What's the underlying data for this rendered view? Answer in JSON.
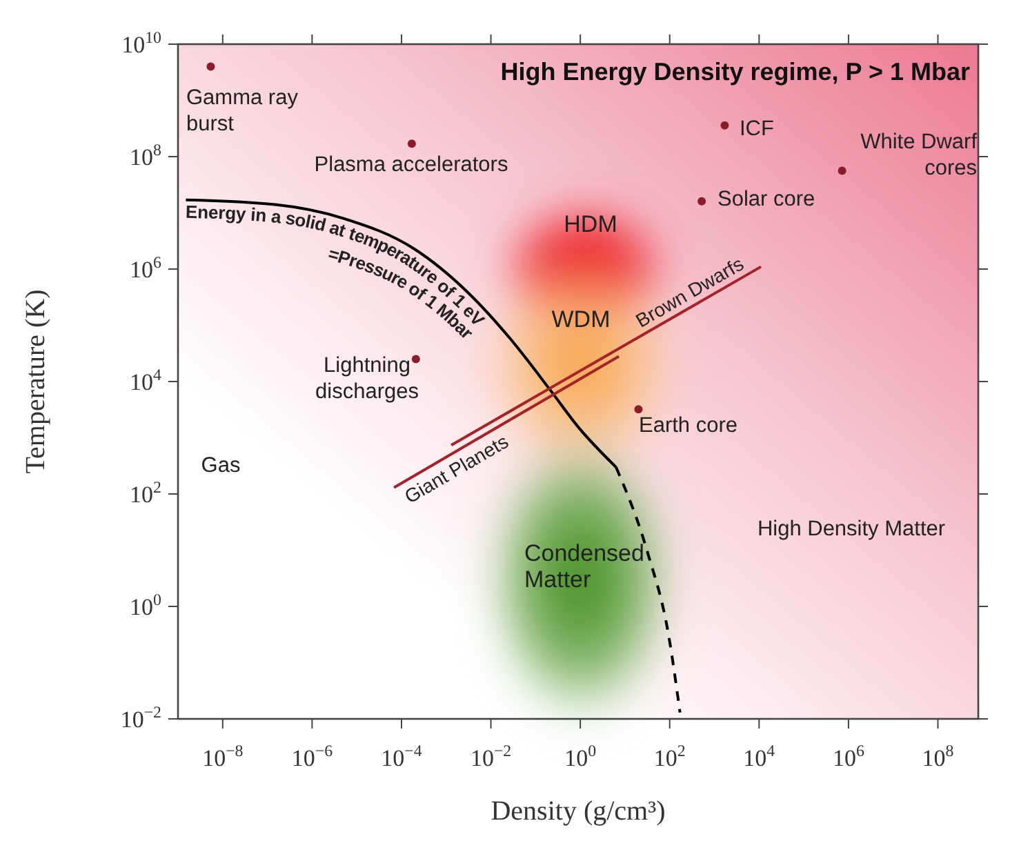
{
  "chart_data": {
    "type": "scatter",
    "title": "High Energy Density regime, P > 1 Mbar",
    "xlabel": "Density (g/cm³)",
    "ylabel": "Temperature (K)",
    "log": "xy",
    "xlim": [
      1e-09,
      800000000.0
    ],
    "ylim": [
      0.01,
      10000000000.0
    ],
    "xticks": [
      {
        "value": 1e-08,
        "label": "10$^{−8}$"
      },
      {
        "value": 1e-06,
        "label": "10$^{−6}$"
      },
      {
        "value": 0.0001,
        "label": "10$^{−4}$"
      },
      {
        "value": 0.01,
        "label": "10$^{−2}$"
      },
      {
        "value": 1,
        "label": "10$^{0}$"
      },
      {
        "value": 100,
        "label": "10$^{2}$"
      },
      {
        "value": 10000,
        "label": "10$^{4}$"
      },
      {
        "value": 1000000,
        "label": "10$^{6}$"
      },
      {
        "value": 100000000,
        "label": "10$^{8}$"
      }
    ],
    "yticks": [
      {
        "value": 0.01,
        "label": "10$^{−2}$"
      },
      {
        "value": 1,
        "label": "10$^{0}$"
      },
      {
        "value": 100,
        "label": "10$^{2}$"
      },
      {
        "value": 10000,
        "label": "10$^{4}$"
      },
      {
        "value": 1000000,
        "label": "10$^{6}$"
      },
      {
        "value": 100000000,
        "label": "10$^{8}$"
      },
      {
        "value": 10000000000,
        "label": "10$^{10}$"
      }
    ],
    "grid": false,
    "legend": false,
    "series": [
      {
        "marker": "circle",
        "color": "#8b1c2c",
        "x": [
          5.4e-09,
          0.00017,
          0.00021,
          1700,
          720000,
          520,
          20
        ],
        "values": [
          4000000000.0,
          170000000.0,
          25000,
          360000000.0,
          56000000.0,
          16000000.0,
          3200
        ]
      },
      {
        "type": "line",
        "name": "Energy in a solid at temperature of 1 eV\n=Pressure of 1 Mbar",
        "color": "#000000",
        "line_style": "solid",
        "x": [
          1.5e-09,
          1.5e-07,
          5.2e-06,
          0.00019,
          0.0032,
          0.027,
          0.22,
          0.93,
          6.3
        ],
        "values": [
          17000000.0,
          14000000.0,
          7900000.0,
          2300000.0,
          370000,
          58000,
          6800,
          1500,
          300
        ]
      },
      {
        "type": "line",
        "color": "#000000",
        "line_style": "dashed",
        "x": [
          6.3,
          32,
          95,
          170
        ],
        "values": [
          300,
          9.1,
          0.3,
          0.013
        ]
      },
      {
        "type": "line",
        "name": "Brown Dwarfs",
        "color": "#a3232b",
        "line_style": "solid",
        "x": [
          0.0013,
          11000
        ],
        "values": [
          740,
          1100000
        ]
      },
      {
        "type": "line",
        "name": "Giant Planets",
        "color": "#a3232b",
        "line_style": "solid",
        "x": [
          6.8e-05,
          7.3
        ],
        "values": [
          130,
          28000
        ]
      }
    ],
    "annotations": [
      "Gamma ray\nburst",
      "Plasma accelerators",
      "Lightning\ndischarges",
      "ICF",
      "White Dwarf\ncores",
      "Solar core",
      "Earth core",
      "Gas",
      "High Density Matter",
      "HDM",
      "WDM",
      "Condensed\nMatter"
    ]
  }
}
